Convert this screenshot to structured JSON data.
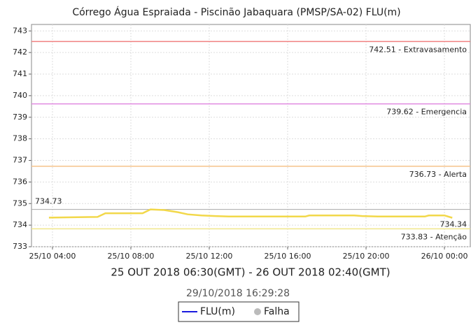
{
  "chart_data": {
    "type": "line",
    "title": "Córrego Água Espraiada - Piscinão Jabaquara (PMSP/SA-02) FLU(m)",
    "xlabel": "25 OUT 2018 06:30(GMT) - 26 OUT 2018 02:40(GMT)",
    "timestamp": "29/10/2018 16:29:28",
    "x": [
      3.82,
      6.3,
      6.7,
      8.6,
      9.0,
      9.7,
      10.4,
      10.9,
      11.6,
      12.3,
      13.0,
      16.9,
      17.1,
      19.4,
      19.8,
      20.6,
      23.0,
      23.2,
      24.0,
      24.4
    ],
    "series": [
      {
        "name": "FLU(m)",
        "color": "#f2d84a",
        "legend_color": "#1a1adf",
        "values": [
          734.35,
          734.38,
          734.55,
          734.55,
          734.73,
          734.7,
          734.6,
          734.5,
          734.45,
          734.42,
          734.4,
          734.4,
          734.45,
          734.45,
          734.42,
          734.4,
          734.4,
          734.45,
          734.45,
          734.34
        ]
      }
    ],
    "failure_legend": {
      "name": "Falha",
      "color": "#bbbbbb"
    },
    "peak_line_color": "#aaaaaa",
    "thresholds": [
      {
        "value": 742.51,
        "label": "742.51 - Extravasamento",
        "color": "#f08080"
      },
      {
        "value": 739.62,
        "label": "739.62 - Emergencia",
        "color": "#e08ae0"
      },
      {
        "value": 736.73,
        "label": "736.73 - Alerta",
        "color": "#f5c28a"
      },
      {
        "value": 733.83,
        "label": "733.83 - Atenção",
        "color": "#f0e68c"
      }
    ],
    "xlim": [
      2.93,
      25.32
    ],
    "xticks": [
      {
        "value": 4,
        "label": "25/10 04:00"
      },
      {
        "value": 8,
        "label": "25/10 08:00"
      },
      {
        "value": 12,
        "label": "25/10 12:00"
      },
      {
        "value": 16,
        "label": "25/10 16:00"
      },
      {
        "value": 20,
        "label": "25/10 20:00"
      },
      {
        "value": 24,
        "label": "26/10 00:00"
      }
    ],
    "ylim": [
      733,
      743.3
    ],
    "yticks": [
      733,
      734,
      735,
      736,
      737,
      738,
      739,
      740,
      741,
      742,
      743
    ],
    "grid": true
  }
}
